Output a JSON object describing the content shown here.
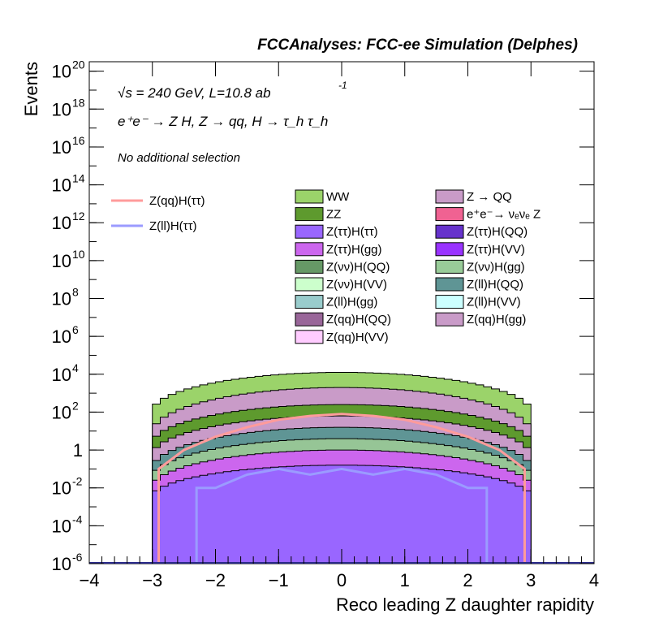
{
  "chart_data": {
    "type": "area",
    "header": "FCCAnalyses: FCC-ee Simulation (Delphes)",
    "annotation_energy": "√s = 240 GeV, L=10.8 ab",
    "annotation_energy_exp": "-1",
    "annotation_process": "e⁺e⁻ → Z H, Z → qq, H → τ_h τ_h",
    "annotation_selection": "No additional selection",
    "xlabel": "Reco leading Z daughter rapidity",
    "ylabel": "Events",
    "xlim": [
      -4,
      4
    ],
    "ylim_log10": [
      -6,
      20.5
    ],
    "log_y": true,
    "x_ticks": [
      "−4",
      "−3",
      "−2",
      "−1",
      "0",
      "1",
      "2",
      "3",
      "4"
    ],
    "y_ticks": [
      {
        "base": "10",
        "exp": "20",
        "pow": 20
      },
      {
        "base": "10",
        "exp": "18",
        "pow": 18
      },
      {
        "base": "10",
        "exp": "16",
        "pow": 16
      },
      {
        "base": "10",
        "exp": "14",
        "pow": 14
      },
      {
        "base": "10",
        "exp": "12",
        "pow": 12
      },
      {
        "base": "10",
        "exp": "10",
        "pow": 10
      },
      {
        "base": "10",
        "exp": "8",
        "pow": 8
      },
      {
        "base": "10",
        "exp": "6",
        "pow": 6
      },
      {
        "base": "10",
        "exp": "4",
        "pow": 4
      },
      {
        "base": "10",
        "exp": "2",
        "pow": 2
      },
      {
        "base": "1",
        "exp": "",
        "pow": 0
      },
      {
        "base": "10",
        "exp": "-2",
        "pow": -2
      },
      {
        "base": "10",
        "exp": "-4",
        "pow": -4
      },
      {
        "base": "10",
        "exp": "-6",
        "pow": -6
      }
    ],
    "stack_layers": [
      {
        "name": "WW",
        "color": "#9bd36a",
        "center_log10": 4.1,
        "edge_log10": 2.0
      },
      {
        "name": "Z → QQ",
        "color": "#c99bc8",
        "center_log10": 3.3,
        "edge_log10": 0.9
      },
      {
        "name": "ZZ",
        "color": "#5e9a2e",
        "center_log10": 2.4,
        "edge_log10": 0.3
      },
      {
        "name": "Z(qq)H(gg)",
        "color": "#c99bc8",
        "center_log10": 1.8,
        "edge_log10": -0.3
      },
      {
        "name": "Z(ll)H(QQ)",
        "color": "#5f9595",
        "center_log10": 1.2,
        "edge_log10": -1.0
      },
      {
        "name": "Z(νν)H(gg)",
        "color": "#96c596",
        "center_log10": 0.6,
        "edge_log10": -1.5
      },
      {
        "name": "Z(ττ)H(gg)",
        "color": "#cc66ee",
        "center_log10": 0.0,
        "edge_log10": -2.0
      },
      {
        "name": "Z(ττ)H(ττ)",
        "color": "#9966ff",
        "center_log10": -0.8,
        "edge_log10": -2.5
      }
    ],
    "series": [
      {
        "name": "Z(qq)H(ττ)",
        "color": "#ff9b9b",
        "x": [
          -2.9,
          -2.5,
          -2.0,
          -1.5,
          -1.0,
          -0.5,
          0.0,
          0.5,
          1.0,
          1.5,
          2.0,
          2.5,
          2.9
        ],
        "y_log10": [
          -1.0,
          0.0,
          0.7,
          1.2,
          1.6,
          1.8,
          1.9,
          1.8,
          1.6,
          1.2,
          0.7,
          0.0,
          -1.0
        ]
      },
      {
        "name": "Z(ll)H(ττ)",
        "color": "#9b9bff",
        "x": [
          -2.3,
          -2.0,
          -1.5,
          -1.0,
          -0.5,
          0.0,
          0.5,
          1.0,
          1.5,
          2.0,
          2.3
        ],
        "y_log10": [
          -2.0,
          -2.0,
          -1.3,
          -1.0,
          -1.3,
          -1.0,
          -1.3,
          -1.0,
          -1.3,
          -2.0,
          -2.0
        ]
      }
    ],
    "legend_left": [
      {
        "name": "Z(qq)H(ττ)",
        "color": "#ff9b9b"
      },
      {
        "name": "Z(ll)H(ττ)",
        "color": "#9b9bff"
      }
    ],
    "legend_col1": [
      {
        "name": "WW",
        "color": "#9bd36a"
      },
      {
        "name": "ZZ",
        "color": "#5e9a2e"
      },
      {
        "name": "Z(ττ)H(ττ)",
        "color": "#9966ff"
      },
      {
        "name": "Z(ττ)H(gg)",
        "color": "#cc66ee"
      },
      {
        "name": "Z(νν)H(QQ)",
        "color": "#669966"
      },
      {
        "name": "Z(νν)H(VV)",
        "color": "#ccffcc"
      },
      {
        "name": "Z(ll)H(gg)",
        "color": "#99cccc"
      },
      {
        "name": "Z(qq)H(QQ)",
        "color": "#996699"
      },
      {
        "name": "Z(qq)H(VV)",
        "color": "#ffccff"
      }
    ],
    "legend_col2": [
      {
        "name": "Z → QQ",
        "color": "#c99bc8"
      },
      {
        "name": "e⁺e⁻→ νₑνₑ Z",
        "color": "#f06292"
      },
      {
        "name": "Z(ττ)H(QQ)",
        "color": "#6633cc"
      },
      {
        "name": "Z(ττ)H(VV)",
        "color": "#9933ff"
      },
      {
        "name": "Z(νν)H(gg)",
        "color": "#99cc99"
      },
      {
        "name": "Z(ll)H(QQ)",
        "color": "#5f9595"
      },
      {
        "name": "Z(ll)H(VV)",
        "color": "#ccffff"
      },
      {
        "name": "Z(qq)H(gg)",
        "color": "#c99bc8"
      }
    ]
  }
}
